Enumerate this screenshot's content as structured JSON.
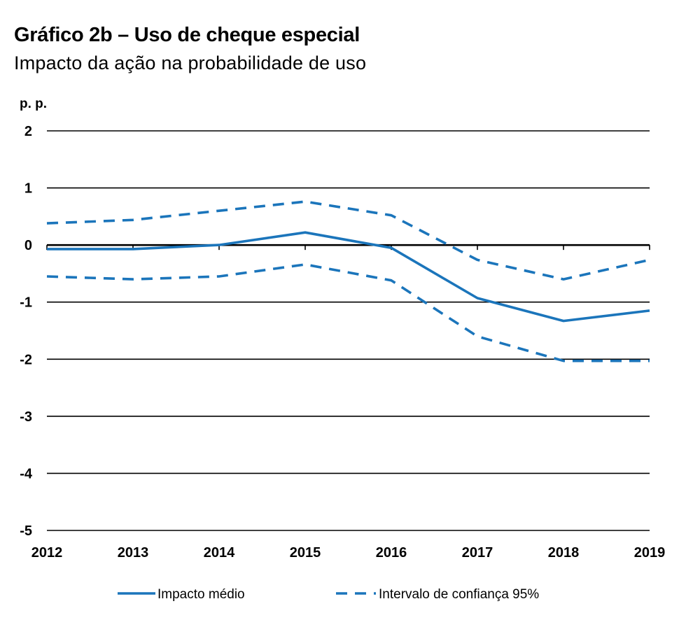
{
  "chart_data": {
    "type": "line",
    "title": "Gráfico 2b – Uso de cheque especial",
    "subtitle": "Impacto da ação na probabilidade  de uso",
    "ylabel": "p. p.",
    "xlabel": "",
    "x": [
      "2012",
      "2013",
      "2014",
      "2015",
      "2016",
      "2017",
      "2018",
      "2019"
    ],
    "yticks": [
      "2",
      "1",
      "0",
      "-1",
      "-2",
      "-3",
      "-4",
      "-5"
    ],
    "ylim": [
      -5,
      2
    ],
    "grid": true,
    "legend_position": "bottom",
    "series": [
      {
        "name": "Impacto médio",
        "style": "solid",
        "color": "#1b75bb",
        "values": [
          -0.07,
          -0.07,
          0.0,
          0.22,
          -0.05,
          -0.93,
          -1.33,
          -1.15
        ]
      },
      {
        "name": "Intervalo de confiança 95%",
        "style": "dashed",
        "color": "#1b75bb",
        "values": [
          0.38,
          0.44,
          0.6,
          0.76,
          0.52,
          -0.26,
          -0.6,
          -0.26
        ]
      },
      {
        "name": "",
        "style": "dashed",
        "color": "#1b75bb",
        "values": [
          -0.55,
          -0.6,
          -0.55,
          -0.34,
          -0.62,
          -1.6,
          -2.03,
          -2.03
        ]
      }
    ],
    "legend": [
      "Impacto médio",
      "Intervalo de confiança 95%"
    ]
  }
}
